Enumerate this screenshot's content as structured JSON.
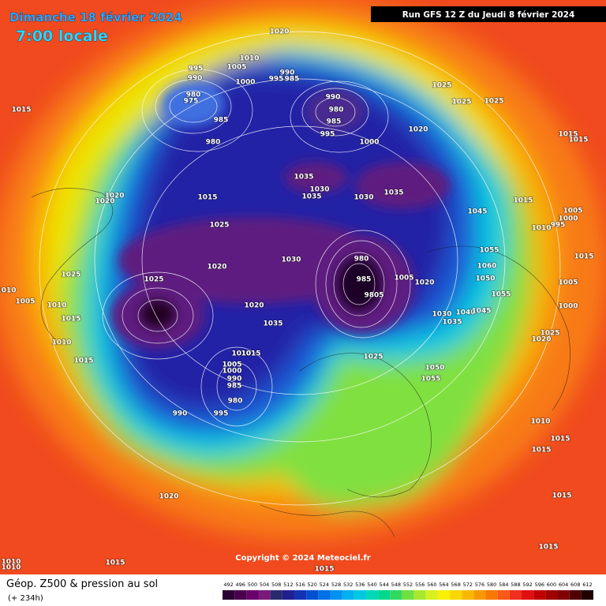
{
  "title": "Dimanche 18 février 2024",
  "time": "7:00 locale",
  "run": "Run GFS 12 Z du Jeudi 8 février 2024",
  "copyright": "Copyright © 2024 Meteociel.fr",
  "legend_title": "Géop. Z500 & pression au sol",
  "forecast_step": "(+ 234h)",
  "colorbar": {
    "ticks": [
      492,
      496,
      500,
      504,
      508,
      512,
      516,
      520,
      524,
      528,
      532,
      536,
      540,
      544,
      548,
      552,
      556,
      560,
      564,
      568,
      572,
      576,
      580,
      584,
      588,
      592,
      596,
      600,
      604,
      608,
      612
    ],
    "colors": [
      "#2b0033",
      "#4a004a",
      "#6a006a",
      "#7a1a7a",
      "#2a2a6e",
      "#1f1f8f",
      "#1432b4",
      "#0050d0",
      "#0070e6",
      "#0090f0",
      "#00b0f0",
      "#00c8e0",
      "#00d8b8",
      "#00d890",
      "#30d860",
      "#70e040",
      "#a8e830",
      "#d8f020",
      "#f8f000",
      "#f8d800",
      "#f8b800",
      "#f89800",
      "#f87800",
      "#f85818",
      "#f03020",
      "#e01010",
      "#c00000",
      "#a00000",
      "#800000",
      "#500000",
      "#200000"
    ]
  },
  "isobar_labels": [
    "1020",
    "1010",
    "1005",
    "995",
    "990",
    "1000",
    "990",
    "995",
    "985",
    "980",
    "975",
    "985",
    "980",
    "990",
    "980",
    "985",
    "995",
    "1000",
    "1020",
    "1025",
    "1025",
    "1025",
    "1015",
    "1015",
    "1015",
    "1035",
    "1030",
    "1035",
    "1030",
    "1035",
    "1020",
    "1020",
    "1015",
    "1025",
    "1045",
    "1015",
    "1005",
    "1000",
    "995",
    "1010",
    "1015",
    "1055",
    "1060",
    "1050",
    "1020",
    "1030",
    "980",
    "985",
    "9805",
    "1005",
    "1020",
    "1025",
    "1025",
    "1005",
    "1010",
    "1015",
    "1010",
    "1010",
    "1005",
    "1055",
    "1000",
    "1030",
    "1040",
    "1045",
    "1035",
    "1025",
    "1020",
    "1020",
    "1035",
    "1010",
    "1015",
    "1005",
    "1000",
    "985",
    "990",
    "980",
    "1015",
    "1025",
    "1050",
    "1055",
    "990",
    "995",
    "1010",
    "1015",
    "1015",
    "1020",
    "1015",
    "1015",
    "1015",
    "1015",
    "1010",
    "1010"
  ]
}
